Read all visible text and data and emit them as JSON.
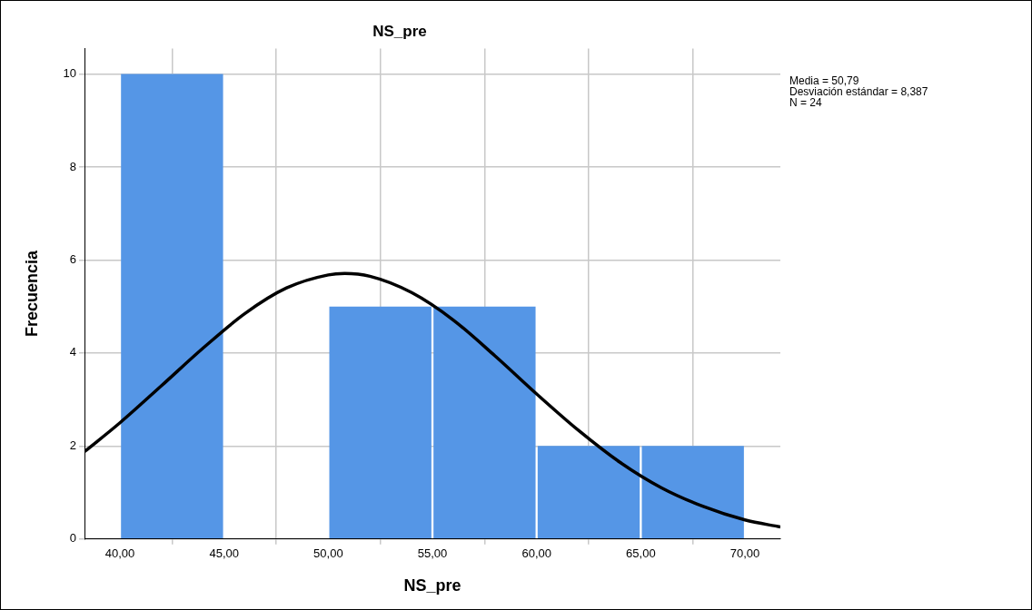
{
  "chart_data": {
    "type": "histogram",
    "title": "NS_pre",
    "xlabel": "NS_pre",
    "ylabel": "Frecuencia",
    "bins": [
      40,
      45,
      50,
      55,
      60,
      65,
      70
    ],
    "values": [
      10,
      0,
      5,
      5,
      2,
      2
    ],
    "color": "#5596e6",
    "series": [
      {
        "type": "line",
        "color": "#000000",
        "x": [
          38.3,
          40,
          42,
          44,
          46,
          48,
          50,
          50.79,
          52,
          54,
          56,
          58,
          60,
          62,
          64,
          66,
          68,
          70,
          71.7
        ],
        "values": [
          1.88,
          2.5,
          3.3,
          4.11,
          4.85,
          5.4,
          5.68,
          5.71,
          5.65,
          5.3,
          4.71,
          3.94,
          3.12,
          2.34,
          1.65,
          1.1,
          0.7,
          0.41,
          0.26
        ]
      }
    ],
    "xlim": [
      38.3,
      71.7
    ],
    "ylim": [
      0,
      10.55
    ],
    "xticks": [
      {
        "value": 40,
        "label": "40,00"
      },
      {
        "value": 45,
        "label": "45,00"
      },
      {
        "value": 50,
        "label": "50,00"
      },
      {
        "value": 55,
        "label": "55,00"
      },
      {
        "value": 60,
        "label": "60,00"
      },
      {
        "value": 65,
        "label": "65,00"
      },
      {
        "value": 70,
        "label": "70,00"
      }
    ],
    "yticks": [
      0,
      2,
      4,
      6,
      8,
      10
    ],
    "grid": true,
    "annotations": [
      "Media = 50,79",
      "Desviación estándar = 8,387",
      "N = 24"
    ]
  }
}
